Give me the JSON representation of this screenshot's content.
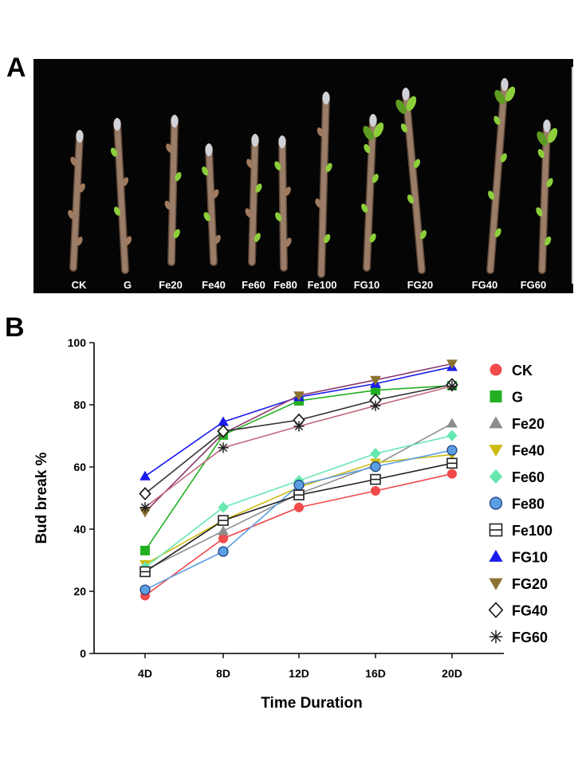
{
  "panels": {
    "a_letter": "A",
    "b_letter": "B"
  },
  "photo": {
    "branch_labels": [
      "CK",
      "G",
      "Fe20",
      "Fe40",
      "Fe60",
      "Fe80",
      "Fe100",
      "FG10",
      "FG20",
      "FG40",
      "FG60"
    ]
  },
  "chart_data": {
    "type": "line",
    "categories": [
      "4D",
      "8D",
      "12D",
      "16D",
      "20D"
    ],
    "xlabel": "Time Duration",
    "ylabel": "Bud break %",
    "ylim": [
      0,
      100
    ],
    "yticks": [
      "0",
      "20",
      "40",
      "60",
      "80",
      "100"
    ],
    "grid": false,
    "legend_position": "right",
    "series": [
      {
        "name": "CK",
        "color": "#f04a4a",
        "marker": "circle",
        "values": [
          18.6,
          37.0,
          47.0,
          52.3,
          57.8
        ]
      },
      {
        "name": "G",
        "color": "#22b022",
        "marker": "square",
        "values": [
          33.1,
          70.3,
          81.3,
          84.7,
          86.2
        ]
      },
      {
        "name": "Fe20",
        "color": "#8c8c8c",
        "marker": "triangle-up",
        "values": [
          26.8,
          39.4,
          51.4,
          60.6,
          74.0
        ]
      },
      {
        "name": "Fe40",
        "color": "#cdbb12",
        "marker": "triangle-down",
        "values": [
          28.7,
          42.8,
          53.5,
          61.4,
          64.0
        ]
      },
      {
        "name": "Fe60",
        "color": "#66e8b0",
        "marker": "diamond",
        "values": [
          27.7,
          47.0,
          55.6,
          64.3,
          70.1
        ]
      },
      {
        "name": "Fe80",
        "color": "#5b9fe3",
        "marker": "circle-outline",
        "values": [
          20.5,
          32.8,
          54.2,
          60.1,
          65.4
        ]
      },
      {
        "name": "Fe100",
        "color": "#222222",
        "marker": "square-open",
        "values": [
          26.3,
          42.8,
          51.0,
          56.0,
          61.2
        ]
      },
      {
        "name": "FG10",
        "color": "#1a1aee",
        "marker": "triangle-up",
        "values": [
          57.0,
          74.5,
          82.5,
          86.8,
          92.2
        ]
      },
      {
        "name": "FG20",
        "color": "#8a7230",
        "marker": "triangle-down",
        "values": [
          45.5,
          70.8,
          83.0,
          88.0,
          93.2
        ]
      },
      {
        "name": "FG40",
        "color": "#111111",
        "marker": "diamond-open",
        "values": [
          51.4,
          71.5,
          75.1,
          81.5,
          86.5
        ]
      },
      {
        "name": "FG60",
        "color": "#222222",
        "marker": "asterisk",
        "values": [
          47.0,
          66.2,
          73.1,
          79.7,
          86.0
        ]
      }
    ],
    "series_line_colors": [
      "#f04a4a",
      "#22b022",
      "#8c8c8c",
      "#cdbb12",
      "#66e8b0",
      "#5b9fe3",
      "#222222",
      "#1a1aee",
      "#8a3a6a",
      "#333333",
      "#c06a7a"
    ]
  }
}
